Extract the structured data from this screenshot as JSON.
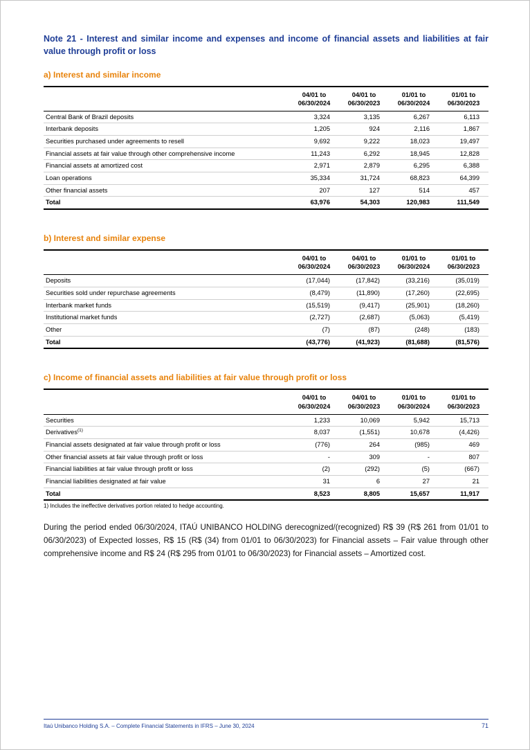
{
  "colors": {
    "title_blue": "#1E3D96",
    "heading_orange": "#E8830C",
    "row_line": "#cfcfcf",
    "table_line": "#000000"
  },
  "note_title": "Note 21 - Interest and similar income and expenses and income of financial assets and liabilities at fair value through profit or loss",
  "sections": [
    {
      "id": "a",
      "heading": "a) Interest and similar income",
      "columns": [
        "04/01 to\n06/30/2024",
        "04/01 to\n06/30/2023",
        "01/01 to\n06/30/2024",
        "01/01 to\n06/30/2023"
      ],
      "rows": [
        {
          "label": "Central Bank of Brazil deposits",
          "values": [
            "3,324",
            "3,135",
            "6,267",
            "6,113"
          ]
        },
        {
          "label": "Interbank deposits",
          "values": [
            "1,205",
            "924",
            "2,116",
            "1,867"
          ]
        },
        {
          "label": "Securities purchased under agreements to resell",
          "values": [
            "9,692",
            "9,222",
            "18,023",
            "19,497"
          ]
        },
        {
          "label": "Financial assets at fair value through other comprehensive income",
          "values": [
            "11,243",
            "6,292",
            "18,945",
            "12,828"
          ]
        },
        {
          "label": "Financial assets at amortized cost",
          "values": [
            "2,971",
            "2,879",
            "6,295",
            "6,388"
          ]
        },
        {
          "label": "Loan operations",
          "values": [
            "35,334",
            "31,724",
            "68,823",
            "64,399"
          ]
        },
        {
          "label": "Other financial assets",
          "values": [
            "207",
            "127",
            "514",
            "457"
          ]
        }
      ],
      "total": {
        "label": "Total",
        "values": [
          "63,976",
          "54,303",
          "120,983",
          "111,549"
        ]
      }
    },
    {
      "id": "b",
      "heading": "b) Interest and similar expense",
      "columns": [
        "04/01 to\n06/30/2024",
        "04/01 to\n06/30/2023",
        "01/01 to\n06/30/2024",
        "01/01 to\n06/30/2023"
      ],
      "rows": [
        {
          "label": "Deposits",
          "values": [
            "(17,044)",
            "(17,842)",
            "(33,216)",
            "(35,019)"
          ]
        },
        {
          "label": "Securities sold under repurchase agreements",
          "values": [
            "(8,479)",
            "(11,890)",
            "(17,260)",
            "(22,695)"
          ]
        },
        {
          "label": "Interbank market funds",
          "values": [
            "(15,519)",
            "(9,417)",
            "(25,901)",
            "(18,260)"
          ]
        },
        {
          "label": "Institutional market funds",
          "values": [
            "(2,727)",
            "(2,687)",
            "(5,063)",
            "(5,419)"
          ]
        },
        {
          "label": "Other",
          "values": [
            "(7)",
            "(87)",
            "(248)",
            "(183)"
          ]
        }
      ],
      "total": {
        "label": "Total",
        "values": [
          "(43,776)",
          "(41,923)",
          "(81,688)",
          "(81,576)"
        ]
      }
    },
    {
      "id": "c",
      "heading": "c) Income of financial assets and liabilities at fair value through profit or loss",
      "columns": [
        "04/01 to\n06/30/2024",
        "04/01 to\n06/30/2023",
        "01/01 to\n06/30/2024",
        "01/01 to\n06/30/2023"
      ],
      "rows": [
        {
          "label": "Securities",
          "values": [
            "1,233",
            "10,069",
            "5,942",
            "15,713"
          ]
        },
        {
          "label": "Derivatives",
          "sup": "(1)",
          "values": [
            "8,037",
            "(1,551)",
            "10,678",
            "(4,426)"
          ]
        },
        {
          "label": "Financial assets designated at fair value through profit or loss",
          "values": [
            "(776)",
            "264",
            "(985)",
            "469"
          ]
        },
        {
          "label": "Other financial assets at fair value through profit or loss",
          "values": [
            "-",
            "309",
            "-",
            "807"
          ]
        },
        {
          "label": "Financial liabilities at fair value through profit or loss",
          "values": [
            "(2)",
            "(292)",
            "(5)",
            "(667)"
          ]
        },
        {
          "label": "Financial liabilities designated at fair value",
          "values": [
            "31",
            "6",
            "27",
            "21"
          ]
        }
      ],
      "total": {
        "label": "Total",
        "values": [
          "8,523",
          "8,805",
          "15,657",
          "11,917"
        ]
      },
      "footnote": "1) Includes the ineffective derivatives portion related to hedge accounting."
    }
  ],
  "paragraph": "During the period ended 06/30/2024, ITAÚ UNIBANCO HOLDING derecognized/(recognized) R$ 39 (R$ 261 from 01/01 to 06/30/2023) of Expected losses, R$ 15 (R$ (34) from 01/01 to 06/30/2023) for Financial assets – Fair value through other comprehensive income and R$ 24 (R$ 295 from 01/01 to 06/30/2023) for Financial assets – Amortized cost.",
  "footer": {
    "left": "Itaú Unibanco Holding S.A. – Complete Financial Statements in IFRS – June 30, 2024",
    "page_number": "71"
  }
}
